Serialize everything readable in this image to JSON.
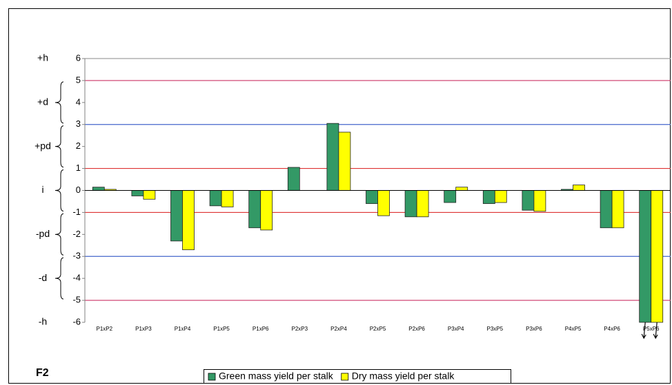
{
  "chart_data": {
    "type": "bar",
    "title": "F2",
    "categories": [
      "P1xP2",
      "P1xP3",
      "P1xP4",
      "P1xP5",
      "P1xP6",
      "P2xP3",
      "P2xP4",
      "P2xP5",
      "P2xP6",
      "P3xP4",
      "P3xP5",
      "P3xP6",
      "P4xP5",
      "P4xP6",
      "P5xP6"
    ],
    "series": [
      {
        "name": "Green mass yield per stalk",
        "color": "#339966",
        "values": [
          0.15,
          -0.25,
          -2.3,
          -0.7,
          -1.7,
          1.05,
          3.05,
          -0.6,
          -1.2,
          -0.55,
          -0.6,
          -0.9,
          0.05,
          -1.7,
          -6
        ]
      },
      {
        "name": "Dry mass yield per stalk",
        "color": "#ffff00",
        "values": [
          0.05,
          -0.4,
          -2.7,
          -0.75,
          -1.8,
          null,
          2.65,
          -1.15,
          -1.2,
          0.15,
          -0.55,
          -0.95,
          0.25,
          -1.7,
          -6
        ]
      }
    ],
    "ylim": [
      -6,
      6
    ],
    "yticks": [
      -6,
      -5,
      -4,
      -3,
      -2,
      -1,
      0,
      1,
      2,
      3,
      4,
      5,
      6
    ],
    "reference_lines": [
      {
        "value": 6,
        "color": "#a0a0a0"
      },
      {
        "value": 5,
        "color": "#cc3366"
      },
      {
        "value": 3,
        "color": "#4466cc"
      },
      {
        "value": 1,
        "color": "#dd3333"
      },
      {
        "value": -1,
        "color": "#dd3333"
      },
      {
        "value": -3,
        "color": "#4466cc"
      },
      {
        "value": -5,
        "color": "#cc3366"
      }
    ],
    "zones": [
      {
        "label": "+h",
        "range": [
          6,
          6
        ]
      },
      {
        "label": "+d",
        "range": [
          5,
          3
        ]
      },
      {
        "label": "+pd",
        "range": [
          3,
          1
        ]
      },
      {
        "label": "i",
        "range": [
          1,
          -1
        ]
      },
      {
        "label": "-pd",
        "range": [
          -1,
          -3
        ]
      },
      {
        "label": "-d",
        "range": [
          -3,
          -5
        ]
      },
      {
        "label": "-h",
        "range": [
          -6,
          -6
        ]
      }
    ],
    "legend": "bottom"
  }
}
